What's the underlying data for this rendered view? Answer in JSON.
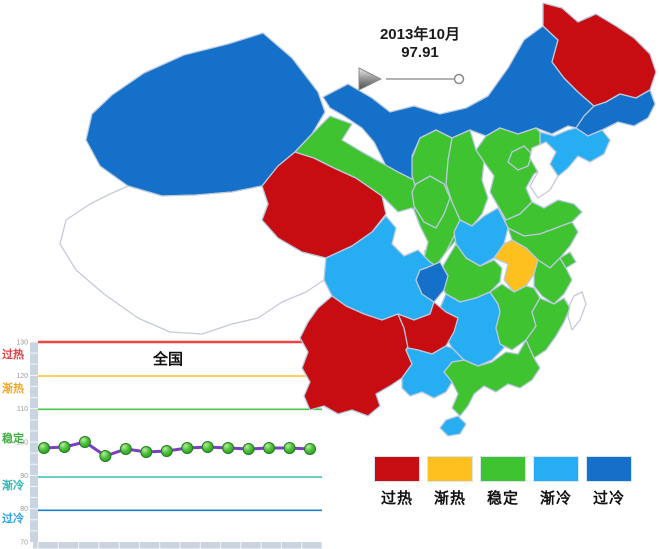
{
  "timeline": {
    "date_label": "2013年10月",
    "value_label": "97.91"
  },
  "map": {
    "border_color": "#b9cadf",
    "no_data_border": "#c4cbd8",
    "category_colors": {
      "过热": "#c70d12",
      "渐热": "#fdc01f",
      "稳定": "#3fc330",
      "渐冷": "#27aef2",
      "过冷": "#1470c8",
      "无数据": "#ffffff"
    },
    "provinces": {
      "xinjiang": "过冷",
      "xizang": "无数据",
      "qinghai": "过热",
      "gansu": "稳定",
      "neimenggu": "过冷",
      "heilongjiang": "过热",
      "jilin": "过冷",
      "liaoning": "渐冷",
      "hebei": "稳定",
      "beijing": "稳定",
      "tianjin": "无数据",
      "shanxi": "稳定",
      "shaanxi": "稳定",
      "ningxia": "稳定",
      "shandong": "稳定",
      "henan": "渐冷",
      "jiangsu": "稳定",
      "anhui": "渐热",
      "shanghai": "稳定",
      "zhejiang": "稳定",
      "hubei": "稳定",
      "chongqing": "过冷",
      "sichuan": "渐冷",
      "yunnan": "过热",
      "guizhou": "过热",
      "hunan": "渐冷",
      "jiangxi": "稳定",
      "fujian": "稳定",
      "guangdong": "稳定",
      "guangxi": "渐冷",
      "hainan": "渐冷",
      "taiwan": "无数据"
    }
  },
  "legend": {
    "items": [
      {
        "label": "过热",
        "color": "#c70d12"
      },
      {
        "label": "渐热",
        "color": "#fdc01f"
      },
      {
        "label": "稳定",
        "color": "#3fc330"
      },
      {
        "label": "渐冷",
        "color": "#27aef2"
      },
      {
        "label": "过冷",
        "color": "#1470c8"
      }
    ]
  },
  "chart_data": {
    "type": "line",
    "title": "全国",
    "values": [
      98.2,
      98.5,
      100.0,
      95.8,
      97.9,
      97.0,
      97.3,
      98.2,
      98.5,
      98.2,
      97.9,
      98.2,
      98.2,
      97.91
    ],
    "ylim": [
      70,
      130
    ],
    "yticks": [
      130,
      120,
      110,
      100,
      90,
      80,
      70
    ],
    "threshold_lines": [
      {
        "zone": "过热",
        "value": 130,
        "color": "#f04545",
        "width": 2.4
      },
      {
        "zone": "渐热",
        "value": 119.8,
        "color": "#ffc125",
        "width": 1.4
      },
      {
        "zone": "稳定",
        "value": 109.8,
        "color": "#4ec44e",
        "width": 1.6
      },
      {
        "zone": "渐冷",
        "value": 89.5,
        "color": "#35bdbd",
        "width": 1.4
      },
      {
        "zone": "过冷",
        "value": 79.5,
        "color": "#1a7fd0",
        "width": 1.6
      }
    ],
    "zone_labels": [
      {
        "label": "过热",
        "color": "#e34040",
        "at": 126.4
      },
      {
        "label": "渐热",
        "color": "#f5a81e",
        "at": 116.2
      },
      {
        "label": "稳定",
        "color": "#3fae3f",
        "at": 101.2
      },
      {
        "label": "渐冷",
        "color": "#2fb5b5",
        "at": 87.1
      },
      {
        "label": "过冷",
        "color": "#31a3e8",
        "at": 77.2
      }
    ],
    "line_color": "#7a3fc4",
    "marker_fill": "#49bd35",
    "marker_stroke": "#1e7a1e",
    "axis_bar_color": "#c9d4e0",
    "tick_label_color": "#999999",
    "grid": false,
    "legend_position": "none"
  }
}
